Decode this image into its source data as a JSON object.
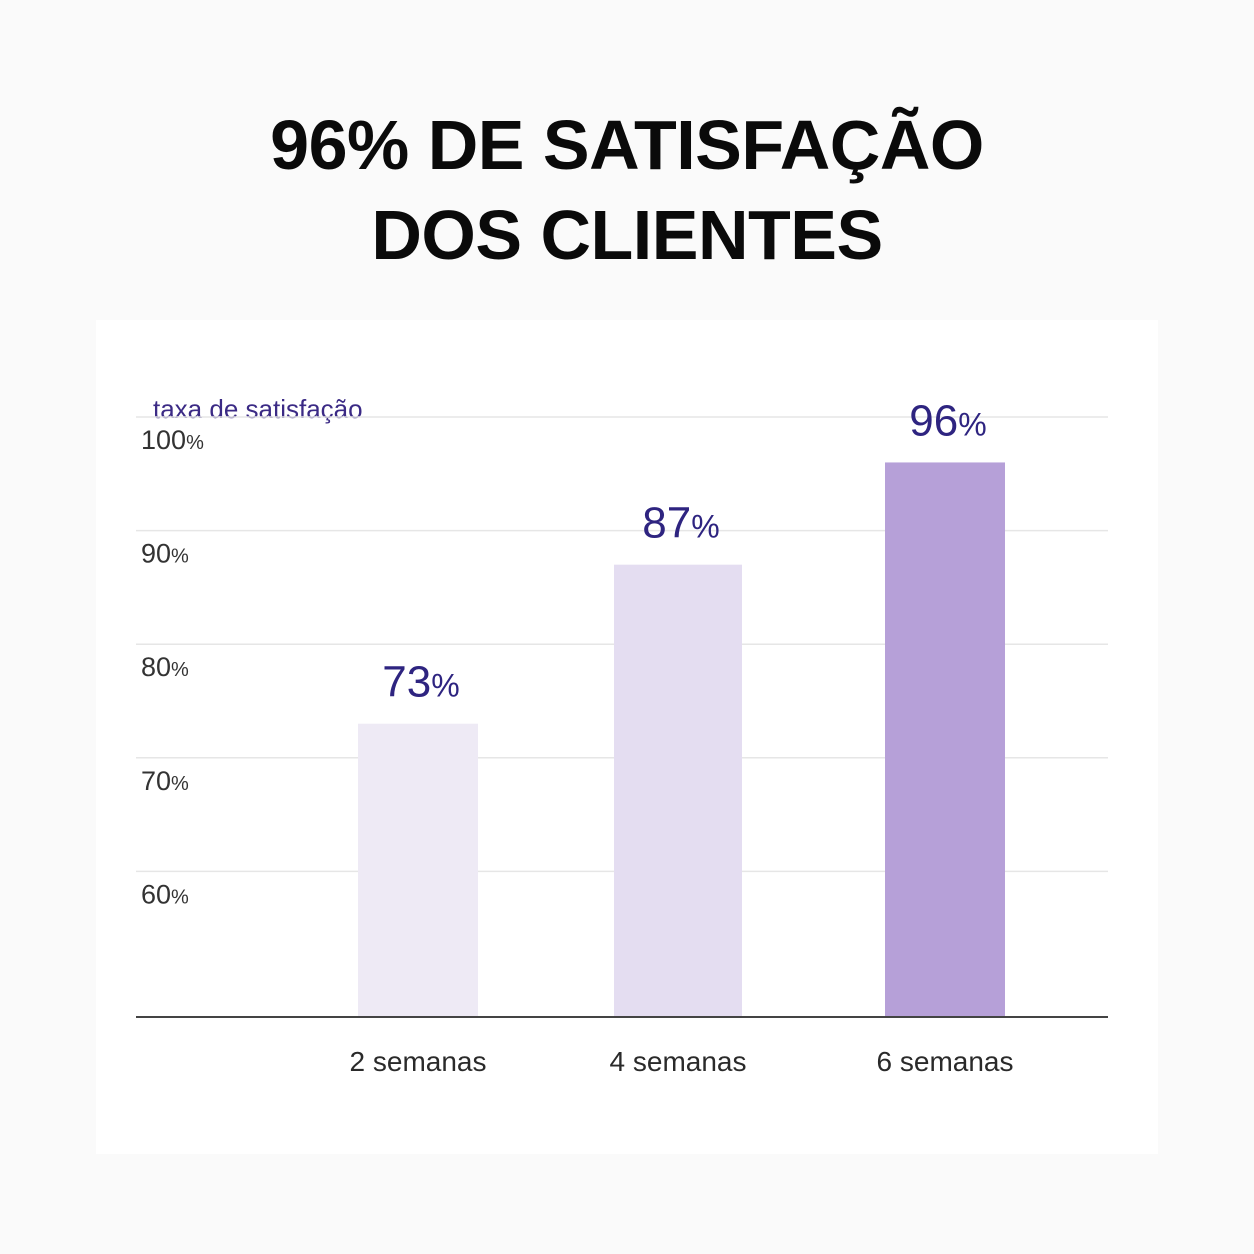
{
  "headline": {
    "line1": "96% DE SATISFAÇÃO",
    "line2": "DOS CLIENTES"
  },
  "chart_data": {
    "type": "bar",
    "ylabel": "taxa de satisfação",
    "categories": [
      "2 semanas",
      "4 semanas",
      "6 semanas"
    ],
    "values": [
      73,
      87,
      96
    ],
    "value_labels": [
      "73%",
      "87%",
      "96%"
    ],
    "yticks": [
      60,
      70,
      80,
      90,
      100
    ],
    "ytick_labels": [
      "60%",
      "70%",
      "80%",
      "90%",
      "100%"
    ],
    "ylim": [
      50,
      100
    ],
    "grid": true,
    "bar_colors": [
      "#eeeaf5",
      "#e4ddf1",
      "#b6a0d8"
    ],
    "label_color": "#2e2480",
    "axis_title_color": "#3b2a85"
  }
}
